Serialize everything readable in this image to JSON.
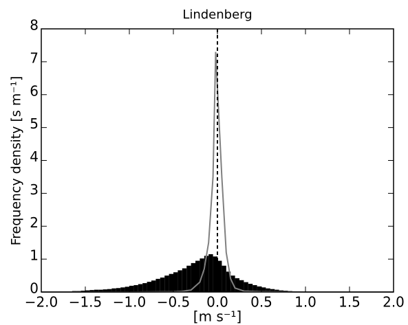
{
  "chart_data": {
    "type": "histogram",
    "title": "Lindenberg",
    "xlabel": "[m s⁻¹]",
    "ylabel": "Frequency density [s m⁻¹]",
    "bins": [
      -2.0,
      -1.95,
      -1.9,
      -1.85,
      -1.8,
      -1.75,
      -1.7,
      -1.65,
      -1.6,
      -1.55,
      -1.5,
      -1.45,
      -1.4,
      -1.35,
      -1.3,
      -1.25,
      -1.2,
      -1.15,
      -1.1,
      -1.05,
      -1.0,
      -0.95,
      -0.9,
      -0.85,
      -0.8,
      -0.75,
      -0.7,
      -0.65,
      -0.6,
      -0.55,
      -0.5,
      -0.45,
      -0.4,
      -0.35,
      -0.3,
      -0.25,
      -0.2,
      -0.15,
      -0.1,
      -0.05,
      0.0,
      0.05,
      0.1,
      0.15,
      0.2,
      0.25,
      0.3,
      0.35,
      0.4,
      0.45,
      0.5,
      0.55,
      0.6,
      0.65,
      0.7,
      0.75,
      0.8,
      0.85,
      0.9,
      0.95,
      1.0,
      1.05,
      1.1,
      1.15,
      1.2,
      1.25,
      1.3,
      1.35,
      1.4,
      1.45,
      1.5,
      1.55,
      1.6,
      1.65,
      1.7,
      1.75,
      1.8,
      1.85,
      1.9,
      1.95,
      2.0
    ],
    "values": [
      0.01,
      0.01,
      0.01,
      0.01,
      0.02,
      0.02,
      0.02,
      0.03,
      0.03,
      0.04,
      0.05,
      0.06,
      0.07,
      0.07,
      0.08,
      0.09,
      0.11,
      0.12,
      0.14,
      0.16,
      0.19,
      0.21,
      0.24,
      0.27,
      0.31,
      0.35,
      0.4,
      0.44,
      0.5,
      0.55,
      0.6,
      0.66,
      0.72,
      0.8,
      0.88,
      0.95,
      1.02,
      1.1,
      1.15,
      1.08,
      0.95,
      0.8,
      0.62,
      0.5,
      0.42,
      0.36,
      0.3,
      0.25,
      0.21,
      0.17,
      0.14,
      0.11,
      0.09,
      0.07,
      0.05,
      0.04,
      0.03,
      0.02,
      0.01,
      0.01,
      0.01,
      0.01,
      0.01,
      0.01,
      0.01,
      0,
      0,
      0,
      0,
      0,
      0,
      0,
      0,
      0,
      0,
      0,
      0,
      0,
      0,
      0
    ],
    "color": "#000000",
    "line": {
      "x": [
        -2.0,
        -1.0,
        -0.5,
        -0.4,
        -0.3,
        -0.2,
        -0.15,
        -0.1,
        -0.05,
        -0.02,
        0.05,
        0.1,
        0.15,
        0.2,
        0.3,
        0.5,
        1.0,
        2.0
      ],
      "values": [
        0,
        0,
        0.01,
        0.02,
        0.06,
        0.3,
        0.7,
        1.5,
        3.5,
        7.3,
        3.5,
        1.2,
        0.4,
        0.12,
        0.03,
        0.01,
        0,
        0
      ],
      "color": "#808080"
    },
    "vline": 0.0,
    "xlim": [
      -2.0,
      2.0
    ],
    "xticks": [
      {
        "value": -2.0,
        "label": "−2.0"
      },
      {
        "value": -1.5,
        "label": "−1.5"
      },
      {
        "value": -1.0,
        "label": "−1.0"
      },
      {
        "value": -0.5,
        "label": "−0.5"
      },
      {
        "value": 0.0,
        "label": "0.0"
      },
      {
        "value": 0.5,
        "label": "0.5"
      },
      {
        "value": 1.0,
        "label": "1.0"
      },
      {
        "value": 1.5,
        "label": "1.5"
      },
      {
        "value": 2.0,
        "label": "2.0"
      }
    ],
    "ylim": [
      0,
      8
    ],
    "yticks": [
      0,
      1,
      2,
      3,
      4,
      5,
      6,
      7,
      8
    ]
  }
}
